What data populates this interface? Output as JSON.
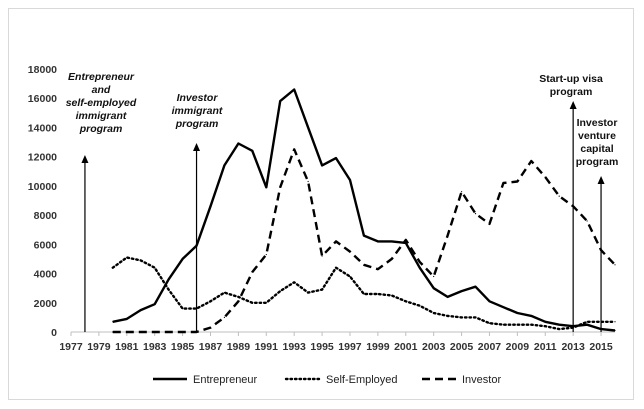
{
  "chart_data": {
    "type": "line",
    "title": "",
    "xlabel": "",
    "ylabel": "",
    "ylim": [
      0,
      18000
    ],
    "xlim": [
      1977,
      2016
    ],
    "y_ticks": [
      0,
      2000,
      4000,
      6000,
      8000,
      10000,
      12000,
      14000,
      16000,
      18000
    ],
    "y_tick_labels": [
      "0",
      "2000",
      "4000",
      "6000",
      "8000",
      "10000",
      "12000",
      "14000",
      "16000",
      "18000"
    ],
    "x_ticks": [
      1977,
      1979,
      1981,
      1983,
      1985,
      1987,
      1989,
      1991,
      1993,
      1995,
      1997,
      1999,
      2001,
      2003,
      2005,
      2007,
      2009,
      2011,
      2013,
      2015
    ],
    "x_tick_labels": [
      "1977",
      "1979",
      "1981",
      "1983",
      "1985",
      "1987",
      "1989",
      "1991",
      "1993",
      "1995",
      "1997",
      "1999",
      "2001",
      "2003",
      "2005",
      "2007",
      "2009",
      "2011",
      "2013",
      "2015"
    ],
    "grid": false,
    "legend_position": "bottom",
    "series": [
      {
        "name": "Entrepreneur",
        "style": "solid",
        "color": "#000000",
        "points": [
          [
            1980,
            700
          ],
          [
            1981,
            900
          ],
          [
            1982,
            1500
          ],
          [
            1983,
            1900
          ],
          [
            1984,
            3600
          ],
          [
            1985,
            5000
          ],
          [
            1986,
            5900
          ],
          [
            1987,
            8600
          ],
          [
            1988,
            11400
          ],
          [
            1989,
            12900
          ],
          [
            1990,
            12400
          ],
          [
            1991,
            9900
          ],
          [
            1992,
            15800
          ],
          [
            1993,
            16600
          ],
          [
            1994,
            14000
          ],
          [
            1995,
            11400
          ],
          [
            1996,
            11900
          ],
          [
            1997,
            10400
          ],
          [
            1998,
            6600
          ],
          [
            1999,
            6200
          ],
          [
            2000,
            6200
          ],
          [
            2001,
            6100
          ],
          [
            2002,
            4400
          ],
          [
            2003,
            3000
          ],
          [
            2004,
            2400
          ],
          [
            2005,
            2800
          ],
          [
            2006,
            3100
          ],
          [
            2007,
            2100
          ],
          [
            2008,
            1700
          ],
          [
            2009,
            1300
          ],
          [
            2010,
            1100
          ],
          [
            2011,
            700
          ],
          [
            2012,
            500
          ],
          [
            2013,
            400
          ],
          [
            2014,
            500
          ],
          [
            2015,
            200
          ],
          [
            2016,
            100
          ]
        ]
      },
      {
        "name": "Self-Employed",
        "style": "dotted",
        "color": "#000000",
        "points": [
          [
            1980,
            4400
          ],
          [
            1981,
            5100
          ],
          [
            1982,
            4900
          ],
          [
            1983,
            4400
          ],
          [
            1984,
            2900
          ],
          [
            1985,
            1600
          ],
          [
            1986,
            1600
          ],
          [
            1987,
            2100
          ],
          [
            1988,
            2700
          ],
          [
            1989,
            2400
          ],
          [
            1990,
            2000
          ],
          [
            1991,
            2000
          ],
          [
            1992,
            2800
          ],
          [
            1993,
            3400
          ],
          [
            1994,
            2700
          ],
          [
            1995,
            2900
          ],
          [
            1996,
            4400
          ],
          [
            1997,
            3800
          ],
          [
            1998,
            2600
          ],
          [
            1999,
            2600
          ],
          [
            2000,
            2500
          ],
          [
            2001,
            2100
          ],
          [
            2002,
            1800
          ],
          [
            2003,
            1300
          ],
          [
            2004,
            1100
          ],
          [
            2005,
            1000
          ],
          [
            2006,
            1000
          ],
          [
            2007,
            600
          ],
          [
            2008,
            500
          ],
          [
            2009,
            500
          ],
          [
            2010,
            500
          ],
          [
            2011,
            400
          ],
          [
            2012,
            200
          ],
          [
            2013,
            300
          ],
          [
            2014,
            700
          ],
          [
            2015,
            700
          ],
          [
            2016,
            700
          ]
        ]
      },
      {
        "name": "Investor",
        "style": "dashed",
        "color": "#000000",
        "points": [
          [
            1980,
            0
          ],
          [
            1981,
            0
          ],
          [
            1982,
            0
          ],
          [
            1983,
            0
          ],
          [
            1984,
            0
          ],
          [
            1985,
            0
          ],
          [
            1986,
            0
          ],
          [
            1987,
            300
          ],
          [
            1988,
            1000
          ],
          [
            1989,
            2100
          ],
          [
            1990,
            4100
          ],
          [
            1991,
            5300
          ],
          [
            1992,
            9900
          ],
          [
            1993,
            12500
          ],
          [
            1994,
            10300
          ],
          [
            1995,
            5200
          ],
          [
            1996,
            6200
          ],
          [
            1997,
            5500
          ],
          [
            1998,
            4600
          ],
          [
            1999,
            4300
          ],
          [
            2000,
            5000
          ],
          [
            2001,
            6300
          ],
          [
            2002,
            4800
          ],
          [
            2003,
            3800
          ],
          [
            2004,
            6600
          ],
          [
            2005,
            9600
          ],
          [
            2006,
            8100
          ],
          [
            2007,
            7400
          ],
          [
            2008,
            10200
          ],
          [
            2009,
            10300
          ],
          [
            2010,
            11700
          ],
          [
            2011,
            10600
          ],
          [
            2012,
            9300
          ],
          [
            2013,
            8600
          ],
          [
            2014,
            7600
          ],
          [
            2015,
            5600
          ],
          [
            2016,
            4600
          ]
        ]
      }
    ],
    "annotations": [
      {
        "lines": [
          "Entrepreneur",
          "and",
          "self-employed",
          "immigrant",
          "program"
        ],
        "year": 1978,
        "italic": true
      },
      {
        "lines": [
          "Investor",
          "immigrant",
          "program"
        ],
        "year": 1986,
        "italic": true
      },
      {
        "lines": [
          "Start-up visa",
          "program"
        ],
        "year": 2013,
        "italic": false
      },
      {
        "lines": [
          "Investor",
          "venture",
          "capital",
          "program"
        ],
        "year": 2015,
        "italic": false
      }
    ]
  }
}
